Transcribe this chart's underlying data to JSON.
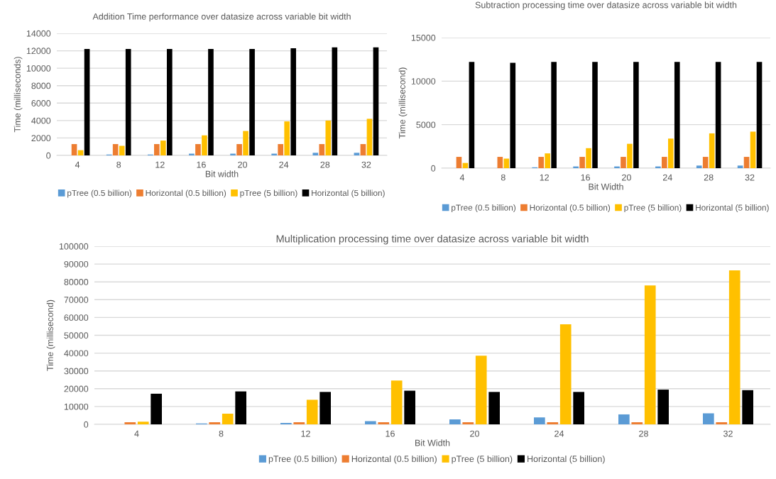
{
  "chart_data": [
    {
      "type": "bar",
      "title": "Addition Time performance over datasize across variable bit width",
      "xlabel": "Bit width",
      "ylabel": "Time (milliseconds)",
      "categories": [
        "4",
        "8",
        "12",
        "16",
        "20",
        "24",
        "28",
        "32"
      ],
      "ylim": [
        0,
        14000
      ],
      "yticks": [
        0,
        2000,
        4000,
        6000,
        8000,
        10000,
        12000,
        14000
      ],
      "grid": "y",
      "legend": "bottom",
      "series": [
        {
          "name": "pTree (0.5 billion)",
          "color": "#5b9bd5",
          "values": [
            0,
            100,
            100,
            200,
            200,
            200,
            300,
            300
          ]
        },
        {
          "name": "Horizontal (0.5 billion)",
          "color": "#ed7d31",
          "values": [
            1300,
            1300,
            1300,
            1300,
            1300,
            1300,
            1300,
            1300
          ]
        },
        {
          "name": "pTree (5 billion)",
          "color": "#ffc000",
          "values": [
            600,
            1100,
            1700,
            2300,
            2800,
            3900,
            4000,
            4200
          ]
        },
        {
          "name": "Horizontal (5 billion)",
          "color": "#000000",
          "values": [
            12200,
            12200,
            12200,
            12200,
            12200,
            12300,
            12400,
            12400
          ]
        }
      ]
    },
    {
      "type": "bar",
      "title": "Subtraction processing time over datasize across variable bit width",
      "xlabel": "Bit Width",
      "ylabel": "Time (millisecond)",
      "categories": [
        "4",
        "8",
        "12",
        "16",
        "20",
        "24",
        "28",
        "32"
      ],
      "ylim": [
        0,
        15000
      ],
      "yticks": [
        0,
        5000,
        10000,
        15000
      ],
      "grid": "y",
      "legend": "bottom",
      "series": [
        {
          "name": "pTree (0.5 billion)",
          "color": "#5b9bd5",
          "values": [
            0,
            0,
            100,
            200,
            200,
            200,
            300,
            300
          ]
        },
        {
          "name": "Horizontal (0.5 billion)",
          "color": "#ed7d31",
          "values": [
            1300,
            1300,
            1300,
            1300,
            1300,
            1300,
            1300,
            1300
          ]
        },
        {
          "name": "pTree (5 billion)",
          "color": "#ffc000",
          "values": [
            600,
            1100,
            1700,
            2300,
            2800,
            3400,
            4000,
            4200
          ]
        },
        {
          "name": "Horizontal (5 billion)",
          "color": "#000000",
          "values": [
            12200,
            12100,
            12200,
            12200,
            12200,
            12200,
            12200,
            12200
          ]
        }
      ]
    },
    {
      "type": "bar",
      "title": "Multiplication processing time over datasize across variable bit width",
      "xlabel": "Bit Width",
      "ylabel": "Time (millisecond)",
      "categories": [
        "4",
        "8",
        "12",
        "16",
        "20",
        "24",
        "28",
        "32"
      ],
      "ylim": [
        0,
        100000
      ],
      "yticks": [
        0,
        10000,
        20000,
        30000,
        40000,
        50000,
        60000,
        70000,
        80000,
        90000,
        100000
      ],
      "grid": "y",
      "legend": "bottom",
      "series": [
        {
          "name": "pTree (0.5 billion)",
          "color": "#5b9bd5",
          "values": [
            null,
            500,
            800,
            1800,
            2800,
            3900,
            5600,
            6200
          ]
        },
        {
          "name": "Horizontal (0.5 billion)",
          "color": "#ed7d31",
          "values": [
            1200,
            1200,
            1200,
            1200,
            1200,
            1200,
            1200,
            1200
          ]
        },
        {
          "name": "pTree (5 billion)",
          "color": "#ffc000",
          "values": [
            1500,
            6000,
            13800,
            24600,
            38500,
            56200,
            78000,
            86500
          ]
        },
        {
          "name": "Horizontal (5 billion)",
          "color": "#000000",
          "values": [
            17200,
            18500,
            18200,
            18900,
            18200,
            18200,
            19500,
            19200
          ]
        }
      ]
    }
  ]
}
